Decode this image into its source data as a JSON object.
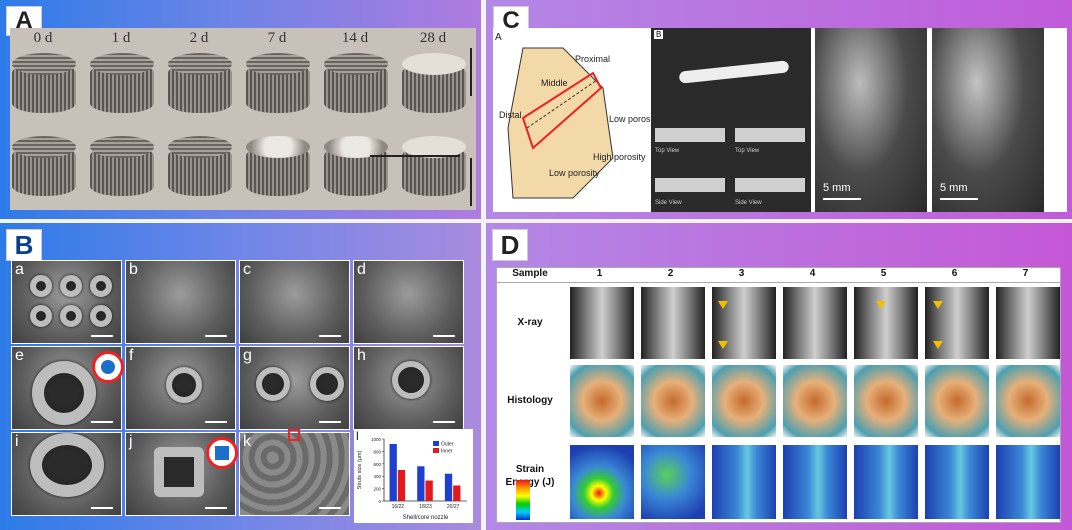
{
  "panels": {
    "a": {
      "label": "A",
      "days": [
        "0 d",
        "1 d",
        "2 d",
        "7 d",
        "14 d",
        "28 d"
      ]
    },
    "b": {
      "label": "B",
      "subpanels": [
        "a",
        "b",
        "c",
        "d",
        "e",
        "f",
        "g",
        "h",
        "i",
        "j",
        "k",
        "l"
      ]
    },
    "c": {
      "label": "C",
      "inner_a": "A",
      "inner_b": "B",
      "annotations": [
        "Proximal",
        "Middle",
        "Distal",
        "Low porosity",
        "High porosity",
        "Low porosity"
      ],
      "views": [
        "Top View",
        "Top View",
        "Side View",
        "Side View"
      ],
      "scale": [
        "5 mm",
        "5 mm"
      ]
    },
    "d": {
      "label": "D",
      "header": [
        "Sample",
        "1",
        "2",
        "3",
        "4",
        "5",
        "6",
        "7"
      ],
      "rows": [
        "X-ray",
        "Histology",
        "Strain\nEnergy (J)"
      ]
    }
  },
  "chart_data": {
    "type": "bar",
    "categories": [
      "16/22",
      "18/23",
      "20/27"
    ],
    "series": [
      {
        "name": "Outer",
        "values": [
          920,
          560,
          440
        ]
      },
      {
        "name": "Inner",
        "values": [
          500,
          330,
          250
        ]
      }
    ],
    "xlabel": "Shell/core nozzle",
    "ylabel": "Struts size (μm)",
    "ylim": [
      0,
      1000
    ],
    "yticks": [
      0,
      200,
      400,
      600,
      800,
      1000
    ],
    "colors": {
      "Outer": "#1f3fd1",
      "Inner": "#e31a1c"
    },
    "legend": "top-right"
  }
}
